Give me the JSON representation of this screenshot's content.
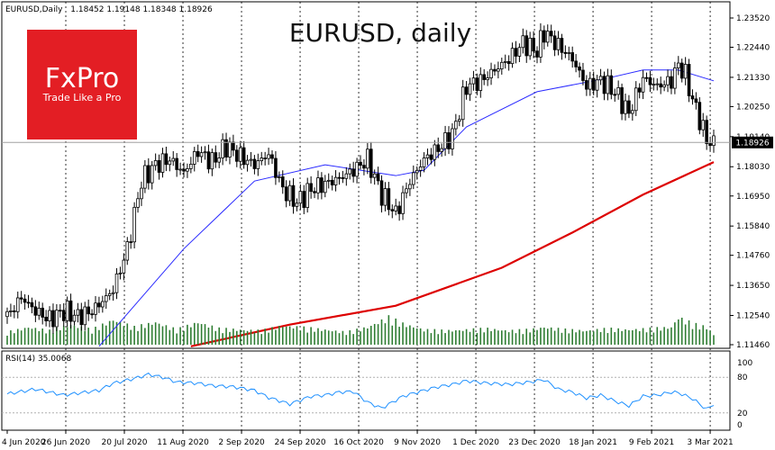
{
  "header": {
    "symbol_info": "EURUSD,Daily",
    "ohlc": "1.18452 1.19148 1.18348 1.18926"
  },
  "chart_title": "EURUSD, daily",
  "logo": {
    "brand": "FxPro",
    "tagline": "Trade Like a Pro",
    "bg": "#e31e24"
  },
  "price_axis": {
    "ticks": [
      "1.23520",
      "1.22440",
      "1.21330",
      "1.20250",
      "1.19140",
      "1.18030",
      "1.16950",
      "1.15840",
      "1.14760",
      "1.13650",
      "1.12540",
      "1.11460"
    ],
    "last_price": "1.18926"
  },
  "rsi_panel": {
    "label": "RSI(14) 35.0068",
    "ticks": [
      "100",
      "80",
      "20",
      "0"
    ],
    "levels": [
      80,
      20
    ]
  },
  "date_axis": {
    "labels": [
      "4 Jun 2020",
      "26 Jun 2020",
      "20 Jul 2020",
      "11 Aug 2020",
      "2 Sep 2020",
      "24 Sep 2020",
      "16 Oct 2020",
      "9 Nov 2020",
      "1 Dec 2020",
      "23 Dec 2020",
      "18 Jan 2021",
      "9 Feb 2021",
      "3 Mar 2021"
    ]
  },
  "colors": {
    "bull": "#ffffff",
    "bear": "#000000",
    "ma_short": "#2a2aff",
    "ma_long": "#dd0000",
    "volume": "#2e7d32",
    "rsi": "#1e90ff",
    "grid": "#000000"
  },
  "chart_data": {
    "type": "candlestick",
    "ymin": 1.1146,
    "ymax": 1.2352,
    "x_range": [
      "4 Jun 2020",
      "3 Mar 2021"
    ],
    "last_price": 1.18926,
    "price_path": [
      [
        0,
        1.125
      ],
      [
        4,
        1.132
      ],
      [
        8,
        1.127
      ],
      [
        12,
        1.124
      ],
      [
        16,
        1.127
      ],
      [
        20,
        1.125
      ],
      [
        24,
        1.127
      ],
      [
        28,
        1.132
      ],
      [
        30,
        1.135
      ],
      [
        34,
        1.15
      ],
      [
        38,
        1.175
      ],
      [
        42,
        1.181
      ],
      [
        46,
        1.183
      ],
      [
        50,
        1.178
      ],
      [
        54,
        1.186
      ],
      [
        58,
        1.182
      ],
      [
        62,
        1.188
      ],
      [
        66,
        1.184
      ],
      [
        70,
        1.181
      ],
      [
        74,
        1.185
      ],
      [
        78,
        1.172
      ],
      [
        82,
        1.167
      ],
      [
        86,
        1.172
      ],
      [
        90,
        1.174
      ],
      [
        94,
        1.176
      ],
      [
        98,
        1.179
      ],
      [
        102,
        1.183
      ],
      [
        106,
        1.17
      ],
      [
        110,
        1.163
      ],
      [
        114,
        1.175
      ],
      [
        118,
        1.183
      ],
      [
        122,
        1.187
      ],
      [
        126,
        1.192
      ],
      [
        130,
        1.21
      ],
      [
        134,
        1.212
      ],
      [
        138,
        1.216
      ],
      [
        142,
        1.22
      ],
      [
        146,
        1.226
      ],
      [
        150,
        1.223
      ],
      [
        152,
        1.23
      ],
      [
        156,
        1.225
      ],
      [
        160,
        1.22
      ],
      [
        164,
        1.21
      ],
      [
        168,
        1.212
      ],
      [
        172,
        1.208
      ],
      [
        176,
        1.2
      ],
      [
        180,
        1.213
      ],
      [
        184,
        1.21
      ],
      [
        188,
        1.212
      ],
      [
        190,
        1.218
      ],
      [
        192,
        1.214
      ],
      [
        194,
        1.205
      ],
      [
        196,
        1.198
      ],
      [
        198,
        1.19
      ],
      [
        200,
        1.189
      ]
    ],
    "ma_short": [
      [
        26,
        1.114
      ],
      [
        50,
        1.15
      ],
      [
        70,
        1.175
      ],
      [
        90,
        1.181
      ],
      [
        110,
        1.177
      ],
      [
        118,
        1.179
      ],
      [
        130,
        1.195
      ],
      [
        150,
        1.208
      ],
      [
        170,
        1.213
      ],
      [
        180,
        1.216
      ],
      [
        190,
        1.216
      ],
      [
        200,
        1.212
      ]
    ],
    "ma_long": [
      [
        52,
        1.114
      ],
      [
        80,
        1.122
      ],
      [
        110,
        1.129
      ],
      [
        140,
        1.143
      ],
      [
        160,
        1.156
      ],
      [
        180,
        1.17
      ],
      [
        200,
        1.182
      ]
    ],
    "rsi_path": [
      [
        0,
        52
      ],
      [
        8,
        60
      ],
      [
        16,
        50
      ],
      [
        26,
        58
      ],
      [
        30,
        70
      ],
      [
        36,
        78
      ],
      [
        40,
        85
      ],
      [
        44,
        80
      ],
      [
        48,
        72
      ],
      [
        54,
        70
      ],
      [
        58,
        66
      ],
      [
        64,
        64
      ],
      [
        70,
        58
      ],
      [
        74,
        46
      ],
      [
        80,
        35
      ],
      [
        86,
        48
      ],
      [
        90,
        50
      ],
      [
        94,
        55
      ],
      [
        98,
        56
      ],
      [
        102,
        38
      ],
      [
        106,
        28
      ],
      [
        112,
        48
      ],
      [
        118,
        58
      ],
      [
        122,
        64
      ],
      [
        126,
        68
      ],
      [
        130,
        74
      ],
      [
        136,
        70
      ],
      [
        142,
        68
      ],
      [
        148,
        72
      ],
      [
        152,
        76
      ],
      [
        156,
        60
      ],
      [
        160,
        55
      ],
      [
        164,
        45
      ],
      [
        168,
        50
      ],
      [
        172,
        40
      ],
      [
        176,
        32
      ],
      [
        180,
        48
      ],
      [
        184,
        50
      ],
      [
        188,
        55
      ],
      [
        190,
        54
      ],
      [
        194,
        44
      ],
      [
        198,
        26
      ],
      [
        200,
        35
      ]
    ],
    "rsi_value": 35.0068,
    "volume_bars": [
      [
        0,
        0.25
      ],
      [
        6,
        0.35
      ],
      [
        12,
        0.28
      ],
      [
        18,
        0.4
      ],
      [
        24,
        0.3
      ],
      [
        30,
        0.5
      ],
      [
        36,
        0.35
      ],
      [
        42,
        0.45
      ],
      [
        48,
        0.3
      ],
      [
        54,
        0.45
      ],
      [
        60,
        0.32
      ],
      [
        66,
        0.3
      ],
      [
        72,
        0.28
      ],
      [
        78,
        0.38
      ],
      [
        84,
        0.34
      ],
      [
        90,
        0.3
      ],
      [
        96,
        0.25
      ],
      [
        102,
        0.35
      ],
      [
        108,
        0.55
      ],
      [
        112,
        0.42
      ],
      [
        118,
        0.3
      ],
      [
        124,
        0.28
      ],
      [
        130,
        0.3
      ],
      [
        136,
        0.32
      ],
      [
        142,
        0.28
      ],
      [
        148,
        0.3
      ],
      [
        152,
        0.35
      ],
      [
        158,
        0.3
      ],
      [
        164,
        0.28
      ],
      [
        170,
        0.32
      ],
      [
        176,
        0.3
      ],
      [
        182,
        0.32
      ],
      [
        188,
        0.35
      ],
      [
        190,
        0.55
      ],
      [
        194,
        0.42
      ],
      [
        198,
        0.35
      ],
      [
        200,
        0.2
      ]
    ]
  }
}
